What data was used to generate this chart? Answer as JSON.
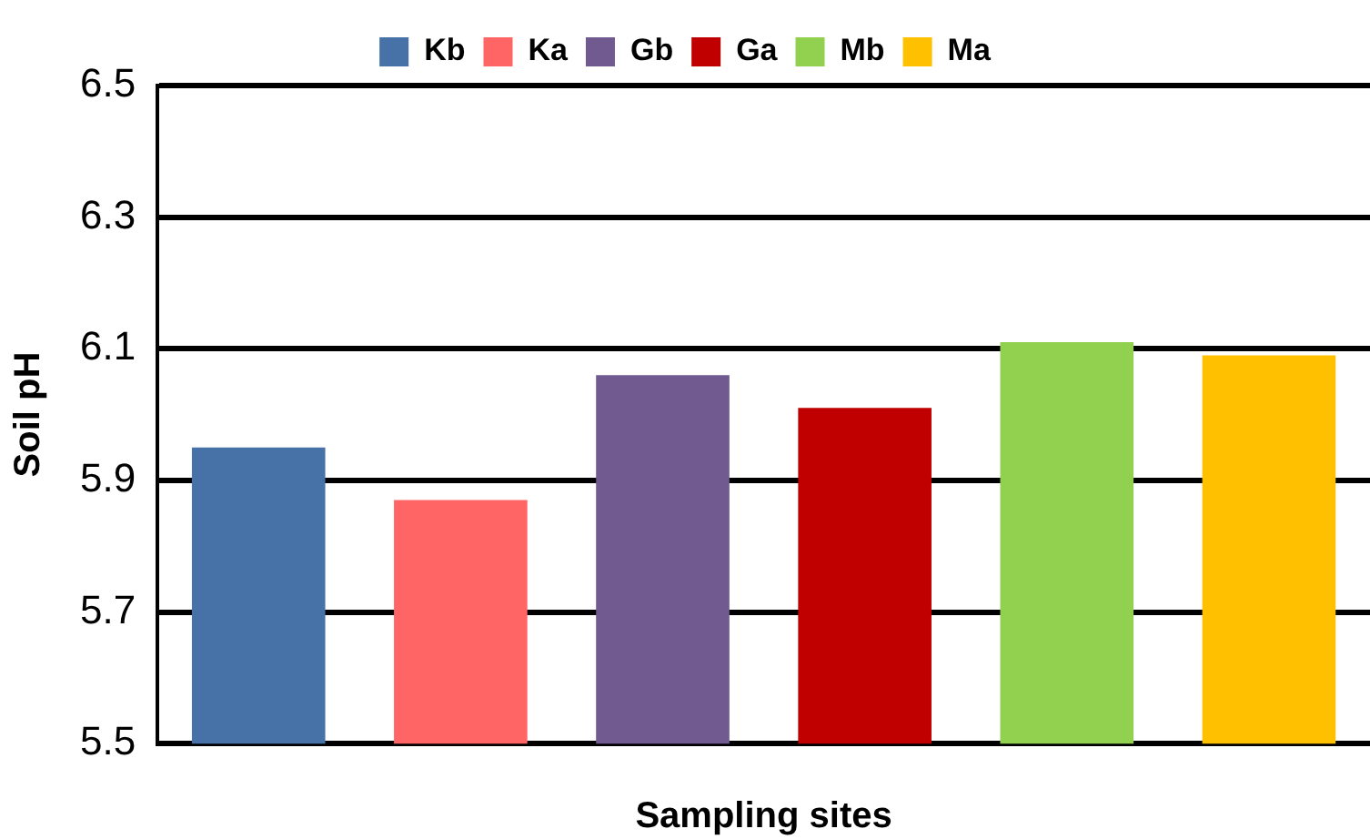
{
  "chart_data": {
    "type": "bar",
    "xlabel": "Sampling sites",
    "ylabel": "Soil pH",
    "categories": [
      null,
      null,
      null
    ],
    "series": [
      {
        "name": "Kb",
        "color": "#4672a8",
        "values": [
          5.95,
          null,
          null
        ]
      },
      {
        "name": "Ka",
        "color": "#ff6565",
        "values": [
          5.87,
          null,
          null
        ]
      },
      {
        "name": "Gb",
        "color": "#715a8f",
        "values": [
          null,
          6.06,
          null
        ]
      },
      {
        "name": "Ga",
        "color": "#c00000",
        "values": [
          null,
          6.01,
          null
        ]
      },
      {
        "name": "Mb",
        "color": "#92d050",
        "values": [
          null,
          null,
          6.11
        ]
      },
      {
        "name": "Ma",
        "color": "#ffc000",
        "values": [
          null,
          null,
          6.09
        ]
      }
    ],
    "ylim": [
      5.5,
      6.5
    ],
    "yticks": [
      5.5,
      5.7,
      5.9,
      6.1,
      6.3,
      6.5
    ],
    "grid": "y",
    "legend": "top"
  }
}
